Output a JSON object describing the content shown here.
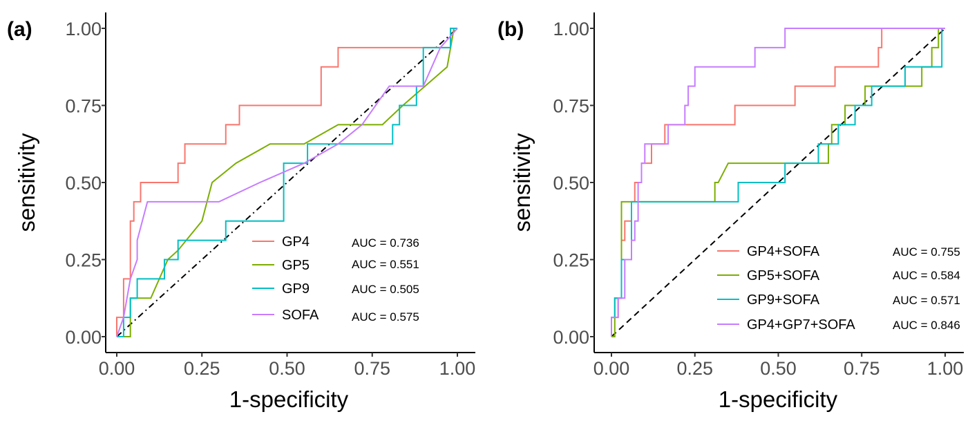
{
  "chart_data": [
    {
      "panel_label": "(a)",
      "type": "line",
      "xlabel": "1-specificity",
      "ylabel": "sensitivity",
      "xlim": [
        0,
        1
      ],
      "ylim": [
        0,
        1
      ],
      "xticks": [
        "0.00",
        "0.25",
        "0.50",
        "0.75",
        "1.00"
      ],
      "yticks": [
        "0.00",
        "0.25",
        "0.50",
        "0.75",
        "1.00"
      ],
      "diagonal_style": "dotdash",
      "series": [
        {
          "name": "GP4",
          "auc": "AUC = 0.736",
          "color": "#F8766D",
          "points": [
            [
              0,
              0
            ],
            [
              0,
              0.0625
            ],
            [
              0.02,
              0.0625
            ],
            [
              0.02,
              0.1875
            ],
            [
              0.04,
              0.1875
            ],
            [
              0.04,
              0.375
            ],
            [
              0.05,
              0.375
            ],
            [
              0.05,
              0.4375
            ],
            [
              0.07,
              0.4375
            ],
            [
              0.07,
              0.5
            ],
            [
              0.18,
              0.5
            ],
            [
              0.18,
              0.5625
            ],
            [
              0.2,
              0.5625
            ],
            [
              0.2,
              0.625
            ],
            [
              0.32,
              0.625
            ],
            [
              0.32,
              0.6875
            ],
            [
              0.36,
              0.6875
            ],
            [
              0.36,
              0.75
            ],
            [
              0.6,
              0.75
            ],
            [
              0.6,
              0.875
            ],
            [
              0.65,
              0.875
            ],
            [
              0.65,
              0.9375
            ],
            [
              0.98,
              0.9375
            ],
            [
              0.98,
              1
            ],
            [
              1,
              1
            ]
          ]
        },
        {
          "name": "GP5",
          "auc": "AUC = 0.551",
          "color": "#7CAE00",
          "points": [
            [
              0,
              0
            ],
            [
              0.04,
              0
            ],
            [
              0.04,
              0.125
            ],
            [
              0.1,
              0.125
            ],
            [
              0.15,
              0.25
            ],
            [
              0.18,
              0.28
            ],
            [
              0.25,
              0.375
            ],
            [
              0.28,
              0.5
            ],
            [
              0.35,
              0.5625
            ],
            [
              0.45,
              0.625
            ],
            [
              0.55,
              0.625
            ],
            [
              0.65,
              0.6875
            ],
            [
              0.72,
              0.6875
            ],
            [
              0.78,
              0.6875
            ],
            [
              0.84,
              0.75
            ],
            [
              0.97,
              0.875
            ],
            [
              0.99,
              1
            ],
            [
              1,
              1
            ]
          ]
        },
        {
          "name": "GP9",
          "auc": "AUC = 0.505",
          "color": "#00BFC4",
          "points": [
            [
              0,
              0
            ],
            [
              0.02,
              0
            ],
            [
              0.02,
              0.0625
            ],
            [
              0.04,
              0.0625
            ],
            [
              0.04,
              0.125
            ],
            [
              0.06,
              0.125
            ],
            [
              0.06,
              0.1875
            ],
            [
              0.14,
              0.1875
            ],
            [
              0.14,
              0.25
            ],
            [
              0.18,
              0.25
            ],
            [
              0.18,
              0.3125
            ],
            [
              0.32,
              0.3125
            ],
            [
              0.32,
              0.375
            ],
            [
              0.49,
              0.375
            ],
            [
              0.49,
              0.5625
            ],
            [
              0.56,
              0.5625
            ],
            [
              0.56,
              0.625
            ],
            [
              0.81,
              0.625
            ],
            [
              0.81,
              0.6875
            ],
            [
              0.83,
              0.6875
            ],
            [
              0.83,
              0.75
            ],
            [
              0.88,
              0.75
            ],
            [
              0.88,
              0.8125
            ],
            [
              0.9,
              0.8125
            ],
            [
              0.9,
              0.9375
            ],
            [
              0.98,
              0.9375
            ],
            [
              0.98,
              1
            ],
            [
              1,
              1
            ]
          ]
        },
        {
          "name": "SOFA",
          "auc": "AUC = 0.575",
          "color": "#C77CFF",
          "points": [
            [
              0,
              0
            ],
            [
              0.02,
              0.0625
            ],
            [
              0.04,
              0.1875
            ],
            [
              0.06,
              0.25
            ],
            [
              0.06,
              0.3125
            ],
            [
              0.09,
              0.4375
            ],
            [
              0.3,
              0.4375
            ],
            [
              0.42,
              0.5
            ],
            [
              0.55,
              0.5625
            ],
            [
              0.65,
              0.625
            ],
            [
              0.72,
              0.6875
            ],
            [
              0.8,
              0.8125
            ],
            [
              0.9,
              0.8125
            ],
            [
              0.95,
              0.9375
            ],
            [
              1,
              1
            ]
          ]
        }
      ]
    },
    {
      "panel_label": "(b)",
      "type": "line",
      "xlabel": "1-specificity",
      "ylabel": "sensitivity",
      "xlim": [
        0,
        1
      ],
      "ylim": [
        0,
        1
      ],
      "xticks": [
        "0.00",
        "0.25",
        "0.50",
        "0.75",
        "1.00"
      ],
      "yticks": [
        "0.00",
        "0.25",
        "0.50",
        "0.75",
        "1.00"
      ],
      "diagonal_style": "dash",
      "series": [
        {
          "name": "GP4+SOFA",
          "auc": "AUC = 0.755",
          "color": "#F8766D",
          "points": [
            [
              0,
              0
            ],
            [
              0,
              0.0625
            ],
            [
              0.02,
              0.0625
            ],
            [
              0.02,
              0.125
            ],
            [
              0.03,
              0.125
            ],
            [
              0.03,
              0.3125
            ],
            [
              0.04,
              0.3125
            ],
            [
              0.04,
              0.375
            ],
            [
              0.06,
              0.375
            ],
            [
              0.06,
              0.4375
            ],
            [
              0.07,
              0.4375
            ],
            [
              0.07,
              0.5
            ],
            [
              0.09,
              0.5
            ],
            [
              0.09,
              0.5625
            ],
            [
              0.12,
              0.5625
            ],
            [
              0.12,
              0.625
            ],
            [
              0.16,
              0.625
            ],
            [
              0.16,
              0.6875
            ],
            [
              0.37,
              0.6875
            ],
            [
              0.37,
              0.75
            ],
            [
              0.55,
              0.75
            ],
            [
              0.55,
              0.8125
            ],
            [
              0.67,
              0.8125
            ],
            [
              0.67,
              0.875
            ],
            [
              0.8,
              0.875
            ],
            [
              0.8,
              0.9375
            ],
            [
              0.81,
              0.9375
            ],
            [
              0.81,
              1
            ],
            [
              1,
              1
            ]
          ]
        },
        {
          "name": "GP5+SOFA",
          "auc": "AUC = 0.584",
          "color": "#7CAE00",
          "points": [
            [
              0,
              0
            ],
            [
              0.01,
              0
            ],
            [
              0.01,
              0.125
            ],
            [
              0.03,
              0.125
            ],
            [
              0.03,
              0.4375
            ],
            [
              0.31,
              0.4375
            ],
            [
              0.31,
              0.5
            ],
            [
              0.32,
              0.5
            ],
            [
              0.35,
              0.5625
            ],
            [
              0.65,
              0.5625
            ],
            [
              0.65,
              0.625
            ],
            [
              0.66,
              0.625
            ],
            [
              0.66,
              0.6875
            ],
            [
              0.7,
              0.6875
            ],
            [
              0.7,
              0.75
            ],
            [
              0.76,
              0.75
            ],
            [
              0.76,
              0.8125
            ],
            [
              0.93,
              0.8125
            ],
            [
              0.93,
              0.875
            ],
            [
              0.96,
              0.875
            ],
            [
              0.96,
              0.9375
            ],
            [
              0.98,
              0.9375
            ],
            [
              0.98,
              1
            ],
            [
              1,
              1
            ]
          ]
        },
        {
          "name": "GP9+SOFA",
          "auc": "AUC = 0.571",
          "color": "#00BFC4",
          "points": [
            [
              0,
              0
            ],
            [
              0,
              0.0625
            ],
            [
              0.01,
              0.0625
            ],
            [
              0.01,
              0.125
            ],
            [
              0.03,
              0.125
            ],
            [
              0.03,
              0.25
            ],
            [
              0.06,
              0.25
            ],
            [
              0.06,
              0.4375
            ],
            [
              0.38,
              0.4375
            ],
            [
              0.38,
              0.5
            ],
            [
              0.52,
              0.5
            ],
            [
              0.52,
              0.5625
            ],
            [
              0.62,
              0.5625
            ],
            [
              0.62,
              0.625
            ],
            [
              0.68,
              0.625
            ],
            [
              0.68,
              0.6875
            ],
            [
              0.73,
              0.6875
            ],
            [
              0.73,
              0.75
            ],
            [
              0.78,
              0.75
            ],
            [
              0.78,
              0.8125
            ],
            [
              0.88,
              0.8125
            ],
            [
              0.88,
              0.875
            ],
            [
              0.99,
              0.875
            ],
            [
              0.99,
              1
            ],
            [
              1,
              1
            ]
          ]
        },
        {
          "name": "GP4+GP7+SOFA",
          "auc": "AUC = 0.846",
          "color": "#C77CFF",
          "points": [
            [
              0,
              0
            ],
            [
              0,
              0.0625
            ],
            [
              0.02,
              0.0625
            ],
            [
              0.02,
              0.125
            ],
            [
              0.04,
              0.125
            ],
            [
              0.04,
              0.25
            ],
            [
              0.06,
              0.25
            ],
            [
              0.06,
              0.3125
            ],
            [
              0.07,
              0.3125
            ],
            [
              0.07,
              0.375
            ],
            [
              0.08,
              0.375
            ],
            [
              0.08,
              0.5
            ],
            [
              0.09,
              0.5
            ],
            [
              0.09,
              0.5625
            ],
            [
              0.1,
              0.5625
            ],
            [
              0.1,
              0.625
            ],
            [
              0.17,
              0.625
            ],
            [
              0.17,
              0.6875
            ],
            [
              0.22,
              0.6875
            ],
            [
              0.22,
              0.75
            ],
            [
              0.23,
              0.75
            ],
            [
              0.23,
              0.8125
            ],
            [
              0.25,
              0.8125
            ],
            [
              0.25,
              0.875
            ],
            [
              0.43,
              0.875
            ],
            [
              0.43,
              0.9375
            ],
            [
              0.52,
              0.9375
            ],
            [
              0.52,
              1
            ],
            [
              1,
              1
            ]
          ]
        }
      ]
    }
  ]
}
